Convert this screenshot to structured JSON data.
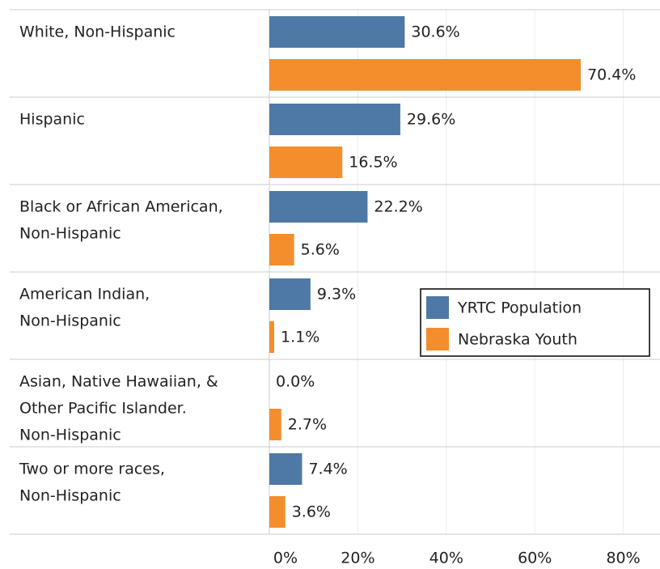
{
  "chart_data": {
    "type": "grouped_hbar",
    "categories": [
      [
        "White, Non-Hispanic"
      ],
      [
        "Hispanic"
      ],
      [
        "Black or African American,",
        "Non-Hispanic"
      ],
      [
        "American Indian,",
        "Non-Hispanic"
      ],
      [
        "Asian, Native Hawaiian, &",
        "Other Pacific Islander.",
        "Non-Hispanic"
      ],
      [
        "Two or more races,",
        "Non-Hispanic"
      ]
    ],
    "series": [
      {
        "name": "YRTC Population",
        "color": "#4e79a7",
        "values": [
          30.6,
          29.6,
          22.2,
          9.3,
          0.0,
          7.4
        ],
        "value_labels": [
          "30.6%",
          "29.6%",
          "22.2%",
          "9.3%",
          "0.0%",
          "7.4%"
        ]
      },
      {
        "name": "Nebraska Youth",
        "color": "#f28e2b",
        "values": [
          70.4,
          16.5,
          5.6,
          1.1,
          2.7,
          3.6
        ],
        "value_labels": [
          "70.4%",
          "16.5%",
          "5.6%",
          "1.1%",
          "2.7%",
          "3.6%"
        ]
      }
    ],
    "xlim": [
      0,
      88.3
    ],
    "xticks": [
      {
        "value": 0,
        "label": "0%"
      },
      {
        "value": 20,
        "label": "20%"
      },
      {
        "value": 40,
        "label": "40%"
      },
      {
        "value": 60,
        "label": "60%"
      },
      {
        "value": 80,
        "label": "80%"
      }
    ],
    "grid": true
  }
}
